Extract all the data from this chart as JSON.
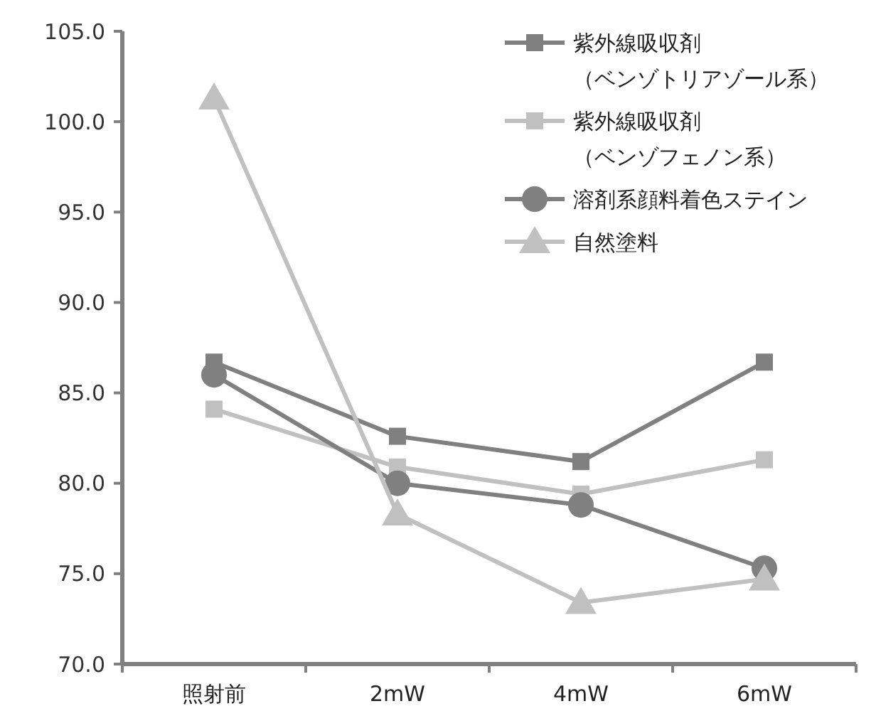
{
  "chart_data": {
    "type": "line",
    "categories": [
      "照射前",
      "2mW",
      "4mW",
      "6mW"
    ],
    "series": [
      {
        "name": "紫外線吸収剤（ベンゾトリアゾール系）",
        "color": "#808080",
        "marker": "square",
        "values": [
          86.7,
          82.6,
          81.2,
          86.7
        ]
      },
      {
        "name": "紫外線吸収剤（ベンゾフェノン系）",
        "color": "#c0c0c0",
        "marker": "square",
        "values": [
          84.1,
          80.9,
          79.4,
          81.3
        ]
      },
      {
        "name": "溶剤系顔料着色ステイン",
        "color": "#808080",
        "marker": "circle",
        "values": [
          86.0,
          80.0,
          78.8,
          75.3
        ]
      },
      {
        "name": "自然塗料",
        "color": "#c0c0c0",
        "marker": "triangle",
        "values": [
          101.3,
          78.3,
          73.4,
          74.7
        ]
      }
    ],
    "ylim": [
      70,
      105
    ],
    "yticks": [
      {
        "value": 70,
        "label": "70.0"
      },
      {
        "value": 75,
        "label": "75.0"
      },
      {
        "value": 80,
        "label": "80.0"
      },
      {
        "value": 85,
        "label": "85.0"
      },
      {
        "value": 90,
        "label": "90.0"
      },
      {
        "value": 95,
        "label": "95.0"
      },
      {
        "value": 100,
        "label": "100.0"
      },
      {
        "value": 105,
        "label": "105.0"
      }
    ],
    "grid": false,
    "legend": "top right"
  }
}
